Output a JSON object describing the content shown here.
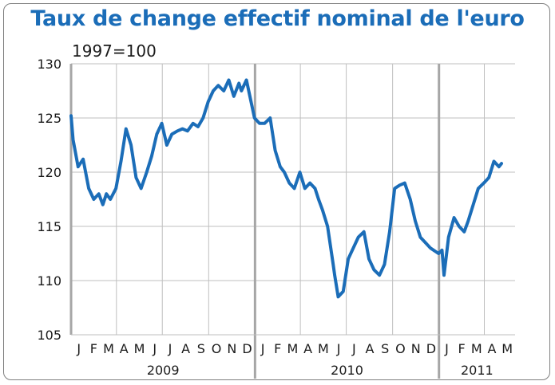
{
  "chart_data": {
    "type": "line",
    "title": "Taux de change effectif nominal de l'euro",
    "subtitle": "1997=100",
    "xlabel": "",
    "ylabel": "",
    "ylim": [
      105,
      130
    ],
    "yticks": [
      105,
      110,
      115,
      120,
      125,
      130
    ],
    "x_range": [
      "2009-01",
      "2011-05"
    ],
    "grid": true,
    "legend": "none",
    "month_labels": [
      "J",
      "F",
      "M",
      "A",
      "M",
      "J",
      "J",
      "A",
      "S",
      "O",
      "N",
      "D",
      "J",
      "F",
      "M",
      "A",
      "M",
      "J",
      "J",
      "A",
      "S",
      "O",
      "N",
      "D",
      "J",
      "F",
      "M",
      "A",
      "M"
    ],
    "year_labels": [
      "2009",
      "2010",
      "2011"
    ],
    "series": [
      {
        "color": "#1b6db8",
        "x": [
          "2009-01-01",
          "2009-01-05",
          "2009-01-15",
          "2009-01-25",
          "2009-02-05",
          "2009-02-15",
          "2009-02-25",
          "2009-03-05",
          "2009-03-12",
          "2009-03-20",
          "2009-03-31",
          "2009-04-10",
          "2009-04-20",
          "2009-04-30",
          "2009-05-10",
          "2009-05-20",
          "2009-05-31",
          "2009-06-10",
          "2009-06-20",
          "2009-06-30",
          "2009-07-10",
          "2009-07-20",
          "2009-07-31",
          "2009-08-10",
          "2009-08-20",
          "2009-08-31",
          "2009-09-10",
          "2009-09-20",
          "2009-09-30",
          "2009-10-10",
          "2009-10-20",
          "2009-10-31",
          "2009-11-10",
          "2009-11-20",
          "2009-11-30",
          "2009-12-05",
          "2009-12-15",
          "2009-12-31",
          "2010-01-10",
          "2010-01-20",
          "2010-01-31",
          "2010-02-10",
          "2010-02-20",
          "2010-02-28",
          "2010-03-10",
          "2010-03-20",
          "2010-03-31",
          "2010-04-10",
          "2010-04-20",
          "2010-04-30",
          "2010-05-07",
          "2010-05-15",
          "2010-05-25",
          "2010-06-05",
          "2010-06-08",
          "2010-06-15",
          "2010-06-25",
          "2010-07-05",
          "2010-07-15",
          "2010-07-25",
          "2010-08-05",
          "2010-08-15",
          "2010-08-25",
          "2010-09-05",
          "2010-09-15",
          "2010-09-25",
          "2010-10-05",
          "2010-10-15",
          "2010-10-25",
          "2010-11-05",
          "2010-11-15",
          "2010-11-25",
          "2010-12-05",
          "2010-12-15",
          "2010-12-31",
          "2011-01-07",
          "2011-01-11",
          "2011-01-20",
          "2011-01-31",
          "2011-02-10",
          "2011-02-20",
          "2011-02-28",
          "2011-03-10",
          "2011-03-20",
          "2011-03-31",
          "2011-04-10",
          "2011-04-20",
          "2011-04-30",
          "2011-05-05"
        ],
        "values": [
          125.2,
          123,
          120.5,
          121.2,
          118.5,
          117.5,
          118,
          117,
          118,
          117.5,
          118.5,
          121,
          124,
          122.5,
          119.5,
          118.5,
          120,
          121.5,
          123.5,
          124.5,
          122.5,
          123.5,
          123.8,
          124,
          123.8,
          124.5,
          124.2,
          125,
          126.5,
          127.5,
          128,
          127.5,
          128.5,
          127,
          128.2,
          127.5,
          128.5,
          125,
          124.5,
          124.5,
          125,
          122,
          120.5,
          120,
          119,
          118.5,
          120,
          118.5,
          119,
          118.5,
          117.5,
          116.5,
          115,
          111.5,
          110.5,
          108.5,
          109,
          112,
          113,
          114,
          114.5,
          112,
          111,
          110.5,
          111.5,
          114.5,
          118.5,
          118.8,
          119,
          117.5,
          115.5,
          114,
          113.5,
          113,
          112.5,
          112.8,
          110.5,
          114,
          115.8,
          115,
          114.5,
          115.5,
          117,
          118.5,
          119,
          119.5,
          121,
          120.5,
          120.8
        ]
      }
    ]
  }
}
